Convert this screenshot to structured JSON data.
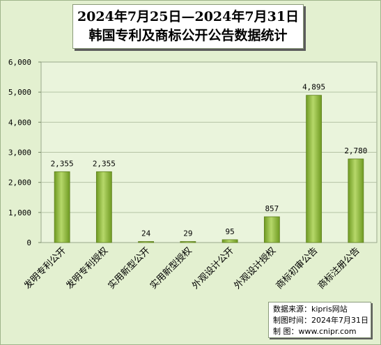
{
  "chart_data": {
    "type": "bar",
    "title_line1": "2024年7月25日—2024年7月31日",
    "title_line2": "韩国专利及商标公开公告数据统计",
    "categories": [
      "发明专利公开",
      "发明专利授权",
      "实用新型公开",
      "实用新型授权",
      "外观设计公开",
      "外观设计授权",
      "商标初审公告",
      "商标注册公告"
    ],
    "values": [
      2355,
      2355,
      24,
      29,
      95,
      857,
      4895,
      2780
    ],
    "data_labels": [
      "2,355",
      "2,355",
      "24",
      "29",
      "95",
      "857",
      "4,895",
      "2,780"
    ],
    "ylim": [
      0,
      6000
    ],
    "yticks": [
      "0",
      "1,000",
      "2,000",
      "3,000",
      "4,000",
      "5,000",
      "6,000"
    ],
    "grid": true,
    "bar_color": "#8db33a"
  },
  "source": {
    "line1": "数据来源：kipris网站",
    "line2": "制图时间：2024年7月31日",
    "line3": "制    图：www.cnipr.com"
  }
}
